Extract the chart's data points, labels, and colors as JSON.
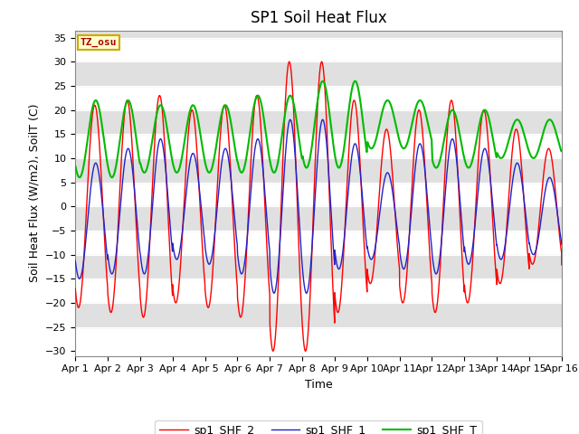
{
  "title": "SP1 Soil Heat Flux",
  "xlabel": "Time",
  "ylabel": "Soil Heat Flux (W/m2), SoilT (C)",
  "ylim": [
    -30,
    36
  ],
  "yticks": [
    -30,
    -25,
    -20,
    -15,
    -10,
    -5,
    0,
    5,
    10,
    15,
    20,
    25,
    30,
    35
  ],
  "xtick_labels": [
    "Apr 1",
    "Apr 2",
    "Apr 3",
    "Apr 4",
    "Apr 5",
    "Apr 6",
    "Apr 7",
    "Apr 8",
    "Apr 9",
    "Apr 10",
    "Apr 11",
    "Apr 12",
    "Apr 13",
    "Apr 14",
    "Apr 15",
    "Apr 16"
  ],
  "line_colors": [
    "#ff0000",
    "#2222cc",
    "#00bb00"
  ],
  "line_labels": [
    "sp1_SHF_2",
    "sp1_SHF_1",
    "sp1_SHF_T"
  ],
  "tz_label": "TZ_osu",
  "bg_band_color": "#e0e0e0",
  "title_fontsize": 12,
  "axis_fontsize": 9,
  "tick_fontsize": 8
}
